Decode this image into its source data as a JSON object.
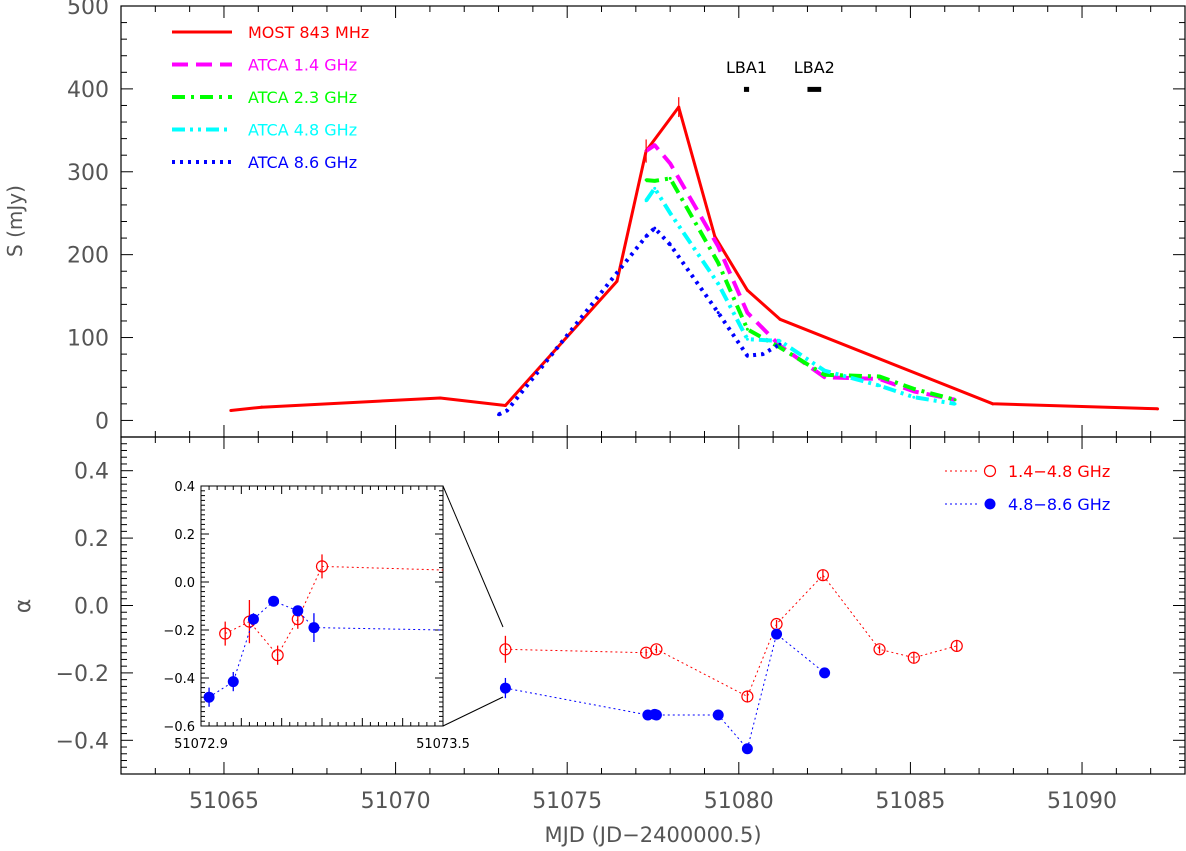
{
  "chart_data": [
    {
      "type": "line",
      "xlabel": "MJD (JD−2400000.5)",
      "ylabel": "S (mJy)",
      "xlim": [
        51062,
        51093
      ],
      "ylim": [
        -20,
        500
      ],
      "xticks": [
        "51065",
        "51070",
        "51075",
        "51080",
        "51085",
        "51090"
      ],
      "yticks": [
        "0",
        "100",
        "200",
        "300",
        "400",
        "500"
      ],
      "legend_position": "top-left",
      "annotations": [
        {
          "text": "LBA1",
          "x_start": 51080.15,
          "x_end": 51080.3,
          "y": 400
        },
        {
          "text": "LBA2",
          "x_start": 51082.0,
          "x_end": 51082.4,
          "y": 400
        }
      ],
      "series": [
        {
          "name": "MOST 843 MHz",
          "color": "#ff0000",
          "style": "solid",
          "x": [
            51065.2,
            51066.1,
            51071.3,
            51073.2,
            51076.45,
            51077.3,
            51078.25,
            51079.3,
            51080.25,
            51081.2,
            51087.4,
            51092.2
          ],
          "y": [
            12,
            16,
            27,
            18,
            168,
            325,
            378,
            222,
            157,
            122,
            20,
            14
          ]
        },
        {
          "name": "ATCA 1.4 GHz",
          "color": "#ff00ff",
          "style": "dashed",
          "x": [
            51077.3,
            51077.55,
            51078.0,
            51079.4,
            51080.25,
            51081.2,
            51082.5,
            51084.1,
            51085.1,
            51086.3
          ],
          "y": [
            325,
            332,
            310,
            210,
            130,
            90,
            52,
            50,
            35,
            25
          ]
        },
        {
          "name": "ATCA 2.3 GHz",
          "color": "#00ff00",
          "style": "dash-dot",
          "x": [
            51077.3,
            51077.55,
            51078.0,
            51079.4,
            51080.25,
            51081.2,
            51082.5,
            51084.1,
            51085.1,
            51086.3
          ],
          "y": [
            290,
            289,
            292,
            190,
            110,
            88,
            55,
            53,
            38,
            25
          ]
        },
        {
          "name": "ATCA 4.8 GHz",
          "color": "#00ffff",
          "style": "dash-dot-dot",
          "x": [
            51077.3,
            51077.55,
            51078.0,
            51079.4,
            51080.25,
            51081.2,
            51082.5,
            51084.1,
            51085.1,
            51086.3
          ],
          "y": [
            265,
            280,
            250,
            165,
            98,
            96,
            60,
            42,
            28,
            20
          ]
        },
        {
          "name": "ATCA 8.6 GHz",
          "color": "#0000ff",
          "style": "dotted",
          "x": [
            51073.0,
            51073.25,
            51077.3,
            51077.55,
            51078.0,
            51079.4,
            51080.25,
            51080.7,
            51081.2
          ],
          "y": [
            7,
            12,
            222,
            232,
            212,
            130,
            78,
            80,
            92
          ]
        }
      ]
    },
    {
      "type": "scatter",
      "xlabel": "MJD (JD−2400000.5)",
      "ylabel": "α",
      "xlim": [
        51062,
        51093
      ],
      "ylim": [
        -0.5,
        0.5
      ],
      "yticks": [
        "−0.4",
        "−0.2",
        "0.0",
        "0.2",
        "0.4"
      ],
      "legend_position": "top-right",
      "series": [
        {
          "name": "1.4−4.8 GHz",
          "color": "#ff0000",
          "marker": "open-circle",
          "x": [
            51073.2,
            51077.3,
            51077.6,
            51080.25,
            51081.1,
            51082.45,
            51084.1,
            51085.1,
            51086.35
          ],
          "y": [
            -0.13,
            -0.14,
            -0.13,
            -0.27,
            -0.055,
            0.09,
            -0.13,
            -0.155,
            -0.12
          ],
          "err": [
            0.04,
            0.012,
            0.012,
            0.015,
            0.012,
            0.015,
            0.012,
            0.015,
            0.018
          ]
        },
        {
          "name": "4.8−8.6 GHz",
          "color": "#0000ff",
          "marker": "filled-circle",
          "x": [
            51073.2,
            51077.35,
            51077.55,
            51077.6,
            51079.4,
            51080.25,
            51081.1,
            51082.5
          ],
          "y": [
            -0.245,
            -0.325,
            -0.323,
            -0.325,
            -0.325,
            -0.425,
            -0.085,
            -0.2
          ],
          "err": [
            0.03,
            0.008,
            0.008,
            0.008,
            0.008,
            0.008,
            0.015,
            0.008
          ]
        }
      ],
      "inset": {
        "xlim": [
          51072.9,
          51073.5
        ],
        "ylim": [
          -0.6,
          0.4
        ],
        "xtick_labels": [
          "51072.9",
          "51073.5"
        ],
        "yticks": [
          "−0.6",
          "−0.4",
          "−0.2",
          "0.0",
          "0.2",
          "0.4"
        ],
        "series": [
          {
            "name": "1.4−4.8 GHz",
            "color": "#ff0000",
            "marker": "open-circle",
            "x": [
              51072.96,
              51073.02,
              51073.09,
              51073.14,
              51073.2,
              51073.5
            ],
            "y": [
              -0.215,
              -0.165,
              -0.305,
              -0.155,
              0.065,
              0.05
            ],
            "err": [
              0.05,
              0.09,
              0.04,
              0.04,
              0.05,
              0.0
            ]
          },
          {
            "name": "4.8−8.6 GHz",
            "color": "#0000ff",
            "marker": "filled-circle",
            "x": [
              51072.92,
              51072.98,
              51073.03,
              51073.08,
              51073.14,
              51073.18,
              51073.5
            ],
            "y": [
              -0.48,
              -0.415,
              -0.155,
              -0.08,
              -0.12,
              -0.19,
              -0.2
            ],
            "err": [
              0.04,
              0.04,
              0.025,
              0.02,
              0.015,
              0.06,
              0.0
            ]
          }
        ]
      }
    }
  ]
}
